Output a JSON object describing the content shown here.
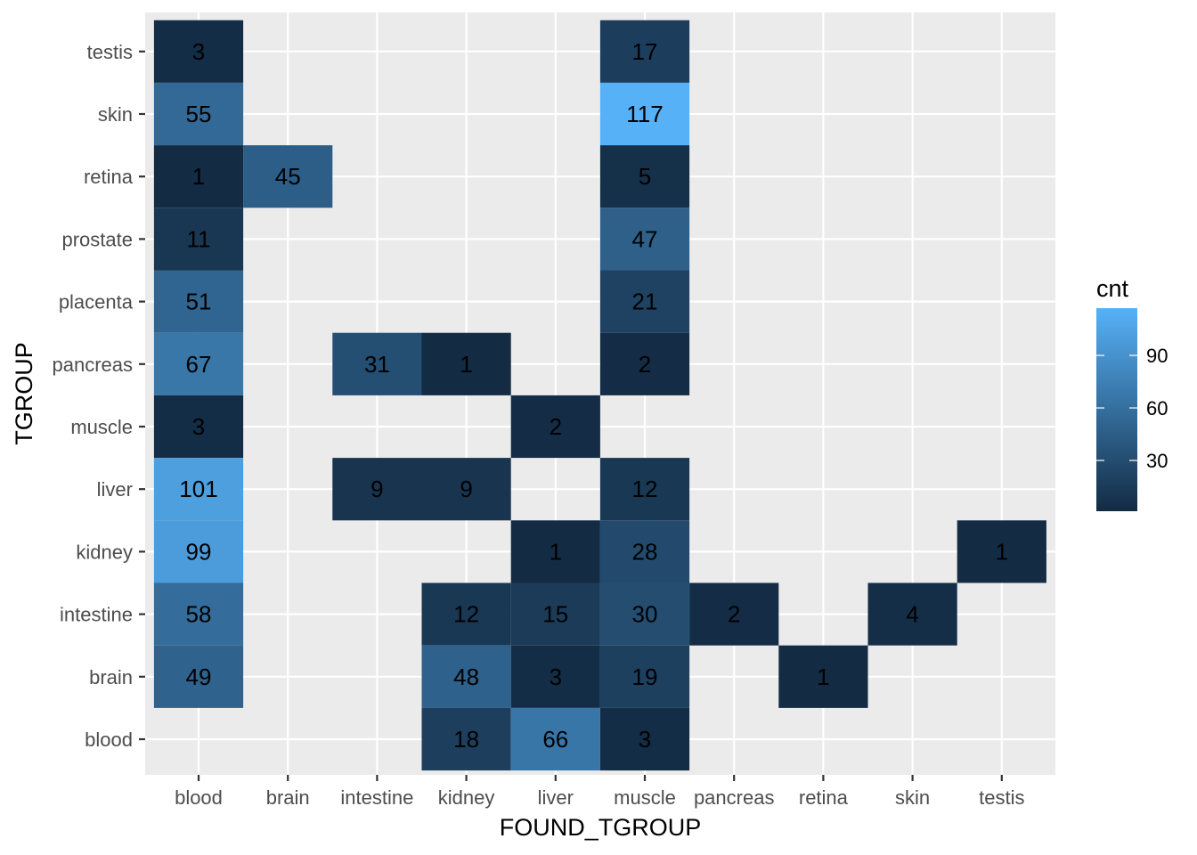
{
  "chart_data": {
    "type": "heatmap",
    "xlabel": "FOUND_TGROUP",
    "ylabel": "TGROUP",
    "x_categories": [
      "blood",
      "brain",
      "intestine",
      "kidney",
      "liver",
      "muscle",
      "pancreas",
      "retina",
      "skin",
      "testis"
    ],
    "y_categories": [
      "blood",
      "brain",
      "intestine",
      "kidney",
      "liver",
      "muscle",
      "pancreas",
      "placenta",
      "prostate",
      "retina",
      "skin",
      "testis"
    ],
    "cells": [
      {
        "x": "blood",
        "y": "testis",
        "value": 3
      },
      {
        "x": "muscle",
        "y": "testis",
        "value": 17
      },
      {
        "x": "blood",
        "y": "skin",
        "value": 55
      },
      {
        "x": "muscle",
        "y": "skin",
        "value": 117
      },
      {
        "x": "blood",
        "y": "retina",
        "value": 1
      },
      {
        "x": "brain",
        "y": "retina",
        "value": 45
      },
      {
        "x": "muscle",
        "y": "retina",
        "value": 5
      },
      {
        "x": "blood",
        "y": "prostate",
        "value": 11
      },
      {
        "x": "muscle",
        "y": "prostate",
        "value": 47
      },
      {
        "x": "blood",
        "y": "placenta",
        "value": 51
      },
      {
        "x": "muscle",
        "y": "placenta",
        "value": 21
      },
      {
        "x": "blood",
        "y": "pancreas",
        "value": 67
      },
      {
        "x": "intestine",
        "y": "pancreas",
        "value": 31
      },
      {
        "x": "kidney",
        "y": "pancreas",
        "value": 1
      },
      {
        "x": "muscle",
        "y": "pancreas",
        "value": 2
      },
      {
        "x": "blood",
        "y": "muscle",
        "value": 3
      },
      {
        "x": "liver",
        "y": "muscle",
        "value": 2
      },
      {
        "x": "blood",
        "y": "liver",
        "value": 101
      },
      {
        "x": "intestine",
        "y": "liver",
        "value": 9
      },
      {
        "x": "kidney",
        "y": "liver",
        "value": 9
      },
      {
        "x": "muscle",
        "y": "liver",
        "value": 12
      },
      {
        "x": "blood",
        "y": "kidney",
        "value": 99
      },
      {
        "x": "liver",
        "y": "kidney",
        "value": 1
      },
      {
        "x": "muscle",
        "y": "kidney",
        "value": 28
      },
      {
        "x": "testis",
        "y": "kidney",
        "value": 1
      },
      {
        "x": "blood",
        "y": "intestine",
        "value": 58
      },
      {
        "x": "kidney",
        "y": "intestine",
        "value": 12
      },
      {
        "x": "liver",
        "y": "intestine",
        "value": 15
      },
      {
        "x": "muscle",
        "y": "intestine",
        "value": 30
      },
      {
        "x": "pancreas",
        "y": "intestine",
        "value": 2
      },
      {
        "x": "skin",
        "y": "intestine",
        "value": 4
      },
      {
        "x": "blood",
        "y": "brain",
        "value": 49
      },
      {
        "x": "kidney",
        "y": "brain",
        "value": 48
      },
      {
        "x": "liver",
        "y": "brain",
        "value": 3
      },
      {
        "x": "muscle",
        "y": "brain",
        "value": 19
      },
      {
        "x": "retina",
        "y": "brain",
        "value": 1
      },
      {
        "x": "kidney",
        "y": "blood",
        "value": 18
      },
      {
        "x": "liver",
        "y": "blood",
        "value": 66
      },
      {
        "x": "muscle",
        "y": "blood",
        "value": 3
      }
    ],
    "legend": {
      "title": "cnt",
      "breaks": [
        30,
        60,
        90
      ],
      "range": [
        1,
        117
      ],
      "low_color": "#132B43",
      "high_color": "#56B1F7",
      "placement": "right"
    },
    "panel_background": "#EBEBEB",
    "grid": true
  }
}
